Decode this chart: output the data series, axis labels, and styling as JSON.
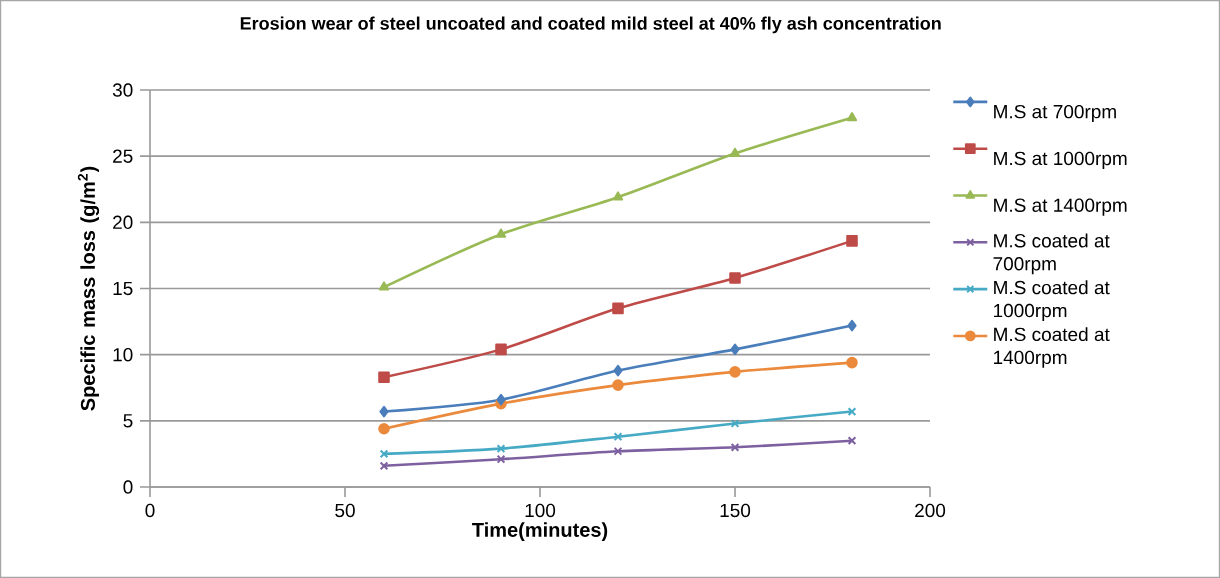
{
  "chart_data": {
    "type": "line",
    "title": "Erosion wear of steel uncoated and coated mild steel  at 40% fly ash concentration",
    "xlabel": "Time(minutes)",
    "ylabel": "Specific mass loss (g/m$^{2}$)",
    "x": [
      60,
      90,
      120,
      150,
      180
    ],
    "series": [
      {
        "name": "M.S at 700rpm",
        "color": "#4a7ebb",
        "marker": "diamond",
        "values": [
          5.7,
          6.6,
          8.8,
          10.4,
          12.2
        ]
      },
      {
        "name": "M.S at 1000rpm",
        "color": "#be4b48",
        "marker": "square",
        "values": [
          8.3,
          10.4,
          13.5,
          15.8,
          18.6
        ]
      },
      {
        "name": "M.S at 1400rpm",
        "color": "#98b954",
        "marker": "triangle",
        "values": [
          15.1,
          19.1,
          21.9,
          25.2,
          27.9
        ]
      },
      {
        "name": "M.S coated at 700rpm",
        "color": "#7d60a0",
        "marker": "cross",
        "values": [
          1.6,
          2.1,
          2.7,
          3.0,
          3.5
        ]
      },
      {
        "name": "M.S coated at 1000rpm",
        "color": "#46aac5",
        "marker": "cross",
        "values": [
          2.5,
          2.9,
          3.8,
          4.8,
          5.7
        ]
      },
      {
        "name": "M.S coated at 1400rpm",
        "color": "#eb8a3c",
        "marker": "circle",
        "values": [
          4.4,
          6.3,
          7.7,
          8.7,
          9.4
        ]
      }
    ],
    "xlim": [
      0,
      200
    ],
    "xticks": [
      0,
      50,
      100,
      150,
      200
    ],
    "ylim": [
      0,
      30
    ],
    "yticks": [
      0,
      5,
      10,
      15,
      20,
      25,
      30
    ],
    "grid": "y",
    "legend": "right"
  }
}
